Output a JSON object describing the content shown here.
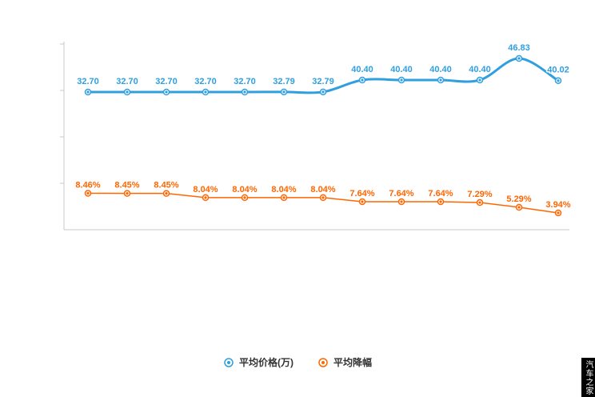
{
  "chart_data": {
    "type": "line",
    "title": "",
    "grid": false,
    "legend_position": "bottom",
    "x_count": 13,
    "series": [
      {
        "name": "平均价格(万)",
        "color": "#2f9fe0",
        "style": "smooth",
        "width": 3,
        "values": [
          32.7,
          32.7,
          32.7,
          32.7,
          32.7,
          32.79,
          32.79,
          40.4,
          40.4,
          40.4,
          40.4,
          46.83,
          40.02
        ],
        "labels": [
          "32.70",
          "32.70",
          "32.70",
          "32.70",
          "32.70",
          "32.79",
          "32.79",
          "40.40",
          "40.40",
          "40.40",
          "40.40",
          "46.83",
          "40.02"
        ]
      },
      {
        "name": "平均降幅",
        "color": "#ff6600",
        "style": "straight",
        "width": 1.5,
        "values": [
          8.46,
          8.45,
          8.45,
          8.04,
          8.04,
          8.04,
          8.04,
          7.64,
          7.64,
          7.64,
          7.29,
          5.29,
          3.94
        ],
        "labels": [
          "8.46%",
          "8.45%",
          "8.45%",
          "8.04%",
          "8.04%",
          "8.04%",
          "8.04%",
          "7.64%",
          "7.64%",
          "7.64%",
          "7.29%",
          "5.29%",
          "3.94%"
        ]
      }
    ],
    "axis_color": "#c9c9c9"
  },
  "watermark": {
    "text": "汽车之家",
    "bg": "#000000",
    "fg": "#ffffff"
  }
}
